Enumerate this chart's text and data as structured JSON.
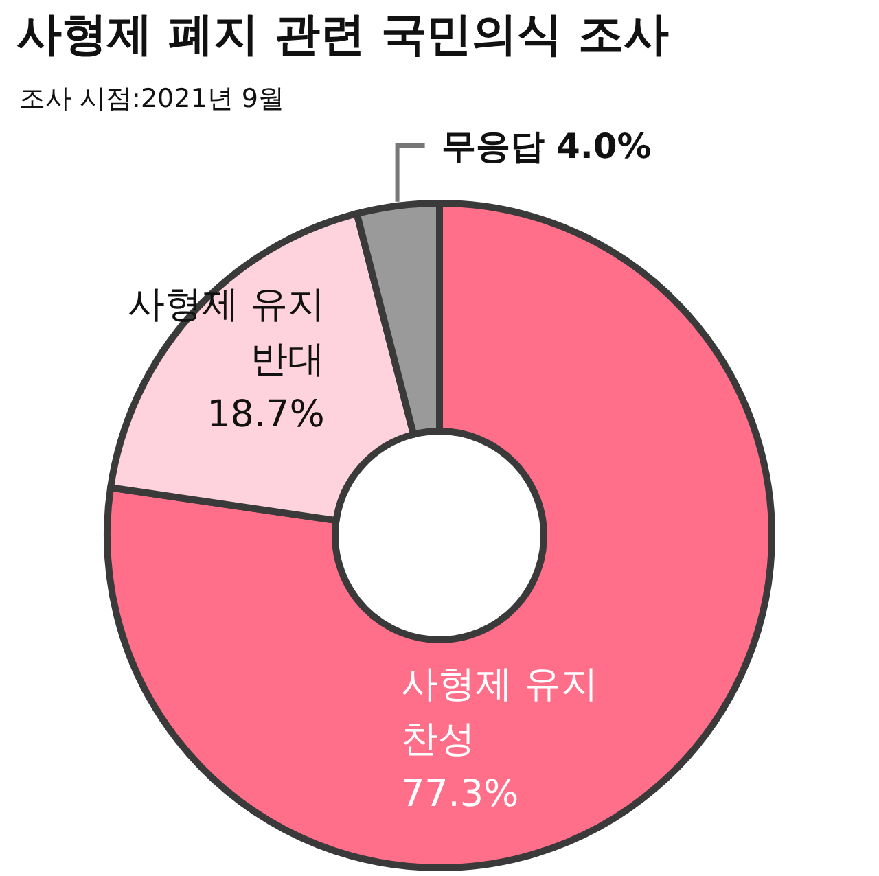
{
  "chart_data": {
    "type": "donut",
    "title": "사형제 폐지 관련 국민의식 조사",
    "annotations": [
      "조사 시점:2021년 9월"
    ],
    "categories": [
      "사형제 유지 찬성",
      "사형제 유지 반대",
      "무응답"
    ],
    "values": [
      77.3,
      18.7,
      4.0
    ],
    "value_labels": [
      "77.3%",
      "18.7%",
      "4.0%"
    ],
    "colors": [
      "#ff6f8a",
      "#ffd3dd",
      "#9a9a9a"
    ],
    "legend": false
  }
}
